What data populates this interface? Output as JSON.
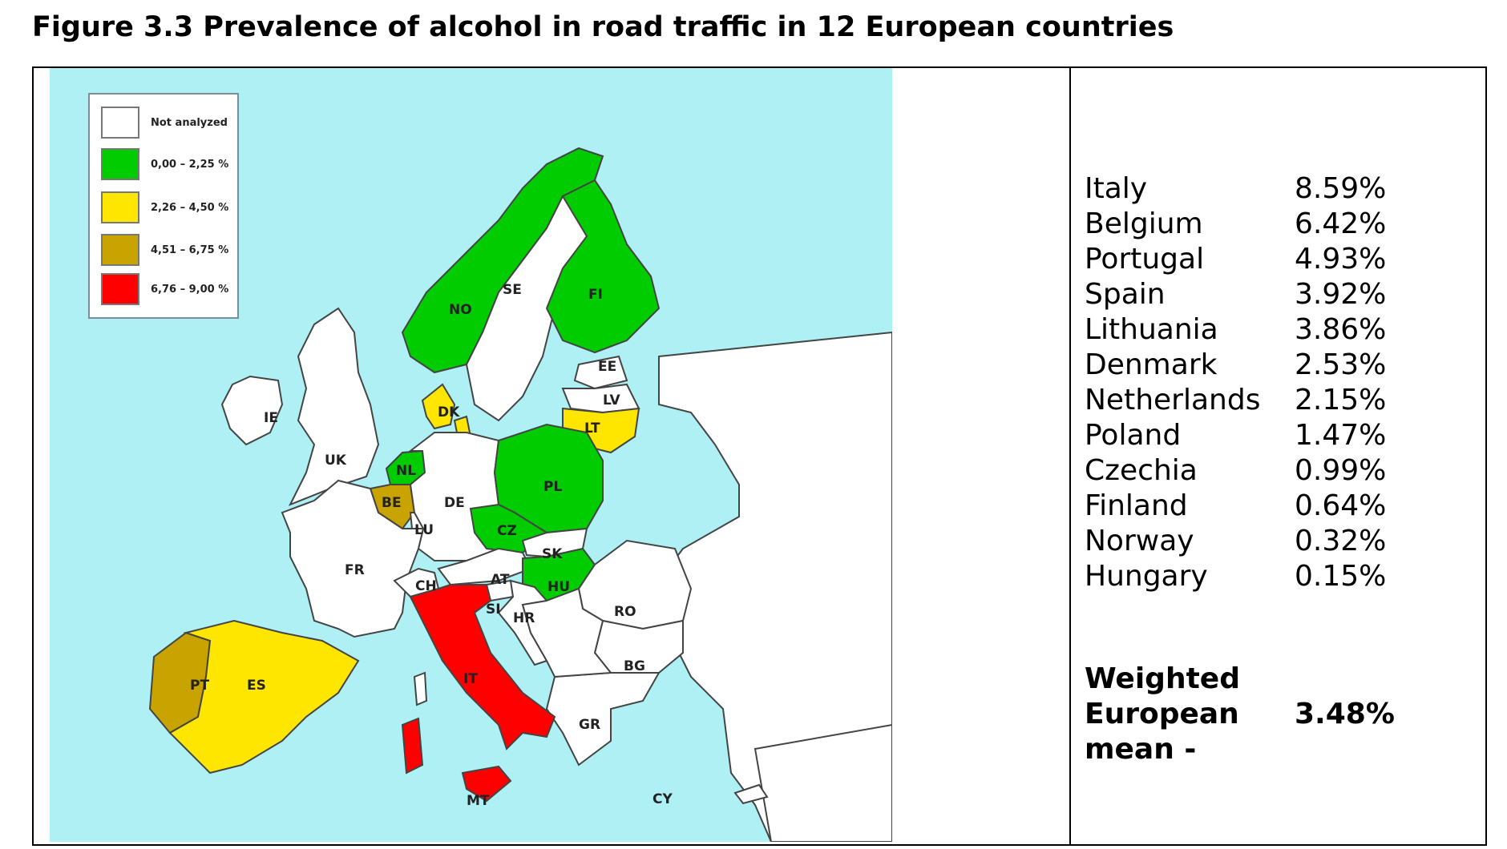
{
  "title": "Figure 3.3 Prevalence of alcohol in road traffic in 12 European countries",
  "colors": {
    "sea": "#aef0f4",
    "not_analyzed": "#ffffff",
    "band1": "#00cc00",
    "band2": "#ffe600",
    "band3": "#c9a400",
    "band4": "#ff0000",
    "border": "#444444"
  },
  "legend": [
    {
      "label": "Not analyzed",
      "color_key": "not_analyzed"
    },
    {
      "label": "0,00 – 2,25 %",
      "color_key": "band1"
    },
    {
      "label": "2,26 – 4,50 %",
      "color_key": "band2"
    },
    {
      "label": "4,51 – 6,75 %",
      "color_key": "band3"
    },
    {
      "label": "6,76 – 9,00 %",
      "color_key": "band4"
    }
  ],
  "map_labels": {
    "IE": "IE",
    "UK": "UK",
    "NO": "NO",
    "SE": "SE",
    "FI": "FI",
    "EE": "EE",
    "LV": "LV",
    "LT": "LT",
    "DK": "DK",
    "NL": "NL",
    "BE": "BE",
    "LU": "LU",
    "DE": "DE",
    "PL": "PL",
    "CZ": "CZ",
    "SK": "SK",
    "FR": "FR",
    "CH": "CH",
    "AT": "AT",
    "HU": "HU",
    "SI": "SI",
    "HR": "HR",
    "RO": "RO",
    "PT": "PT",
    "ES": "ES",
    "IT": "IT",
    "BG": "BG",
    "GR": "GR",
    "MT": "MT",
    "CY": "CY"
  },
  "country_values": [
    {
      "country": "Italy",
      "value": "8.59%"
    },
    {
      "country": "Belgium",
      "value": "6.42%"
    },
    {
      "country": "Portugal",
      "value": "4.93%"
    },
    {
      "country": "Spain",
      "value": "3.92%"
    },
    {
      "country": "Lithuania",
      "value": "3.86%"
    },
    {
      "country": "Denmark",
      "value": "2.53%"
    },
    {
      "country": "Netherlands",
      "value": "2.15%"
    },
    {
      "country": "Poland",
      "value": "1.47%"
    },
    {
      "country": "Czechia",
      "value": "0.99%"
    },
    {
      "country": "Finland",
      "value": "0.64%"
    },
    {
      "country": "Norway",
      "value": "0.32%"
    },
    {
      "country": "Hungary",
      "value": "0.15%"
    }
  ],
  "mean": {
    "label": "Weighted European mean -",
    "value": "3.48%"
  }
}
